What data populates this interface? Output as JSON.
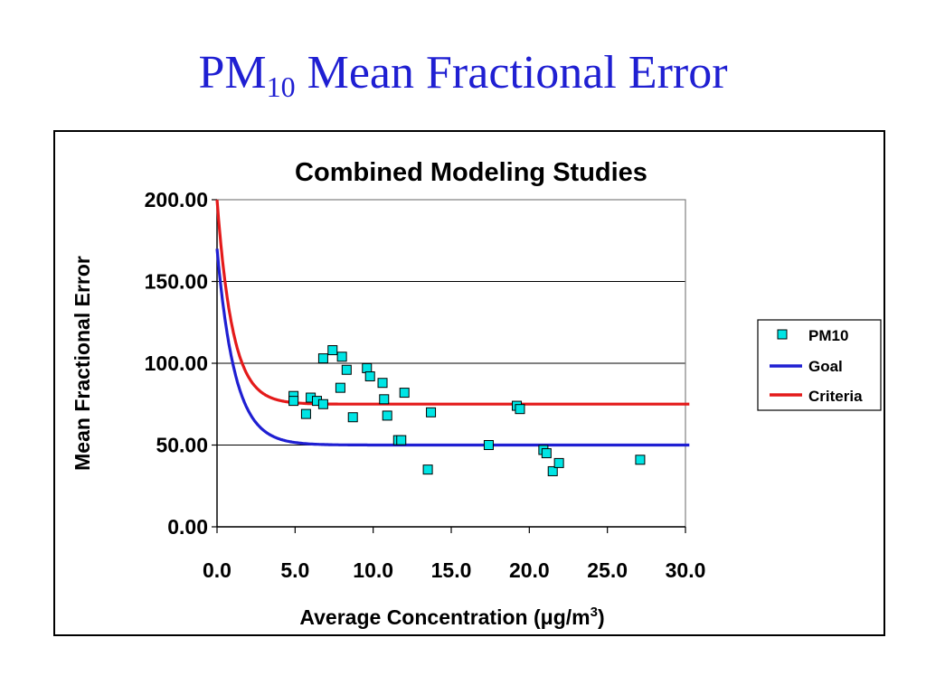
{
  "slide": {
    "title_main": "PM",
    "title_sub": "10",
    "title_rest": " Mean Fractional Error",
    "title_color": "#1f1fd2"
  },
  "chart_data": {
    "type": "scatter",
    "title": "Combined Modeling Studies",
    "xlabel_prefix": "Average Concentration (",
    "xlabel_mu": "μ",
    "xlabel_unit": "g/m",
    "xlabel_sup": "3",
    "xlabel_suffix": ")",
    "ylabel": "Mean Fractional Error",
    "xlim": [
      0,
      30
    ],
    "ylim": [
      0,
      200
    ],
    "x_ticks": [
      "0.0",
      "5.0",
      "10.0",
      "15.0",
      "20.0",
      "25.0",
      "30.0"
    ],
    "y_ticks": [
      "0.00",
      "50.00",
      "100.00",
      "150.00",
      "200.00"
    ],
    "grid": "horizontal",
    "legend_position": "right",
    "series": [
      {
        "name": "PM10",
        "kind": "markers",
        "color": "#00e5e5",
        "points": [
          [
            4.9,
            80
          ],
          [
            4.9,
            77
          ],
          [
            5.7,
            69
          ],
          [
            6.0,
            79
          ],
          [
            6.4,
            77
          ],
          [
            6.8,
            103
          ],
          [
            6.8,
            75
          ],
          [
            7.4,
            108
          ],
          [
            7.9,
            85
          ],
          [
            8.0,
            104
          ],
          [
            8.3,
            96
          ],
          [
            8.7,
            67
          ],
          [
            9.6,
            97
          ],
          [
            9.8,
            92
          ],
          [
            10.6,
            88
          ],
          [
            10.7,
            78
          ],
          [
            10.9,
            68
          ],
          [
            11.6,
            53
          ],
          [
            11.8,
            53
          ],
          [
            12.0,
            82
          ],
          [
            13.5,
            35
          ],
          [
            13.7,
            70
          ],
          [
            17.4,
            50
          ],
          [
            19.2,
            74
          ],
          [
            19.4,
            72
          ],
          [
            20.9,
            47
          ],
          [
            21.1,
            45
          ],
          [
            21.5,
            34
          ],
          [
            21.9,
            39
          ],
          [
            27.1,
            41
          ]
        ]
      },
      {
        "name": "Goal",
        "kind": "line",
        "color": "#1f1fd2",
        "curve": {
          "plateau": 50,
          "start": 170,
          "decay": 1.15
        }
      },
      {
        "name": "Criteria",
        "kind": "line",
        "color": "#e41a1a",
        "curve": {
          "plateau": 75,
          "start": 200,
          "decay": 1.0
        }
      }
    ]
  }
}
